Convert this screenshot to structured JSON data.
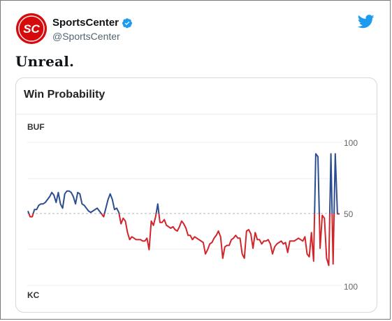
{
  "account": {
    "name": "SportsCenter",
    "handle": "@SportsCenter",
    "verified": true,
    "avatar_text": "SC"
  },
  "tweet": {
    "text": "Unreal."
  },
  "icons": {
    "brand": "twitter-bird-icon",
    "verified": "verified-badge-icon"
  },
  "card": {
    "title": "Win Probability"
  },
  "colors": {
    "buf": "#2c4d8f",
    "kc": "#d0262b",
    "twitter_blue": "#1d9bf0",
    "avatar": "#d50a0a"
  },
  "chart_data": {
    "type": "line",
    "title": "Win Probability",
    "top_label": "BUF",
    "bottom_label": "KC",
    "ylim": [
      0,
      100
    ],
    "y_ticks": [
      "100",
      "50",
      "100"
    ],
    "baseline": 50,
    "grid": true,
    "series": [
      {
        "values": [
          52,
          48,
          48,
          53,
          53,
          56,
          57,
          57,
          58,
          60,
          62,
          65,
          63,
          58,
          65,
          57,
          54,
          64,
          66,
          66,
          65,
          62,
          57,
          65,
          64,
          57,
          56,
          54,
          52,
          51,
          52,
          53,
          54,
          52,
          50,
          48,
          54,
          60,
          64,
          60,
          53,
          54,
          51,
          43,
          47,
          45,
          37,
          32,
          34,
          33,
          32,
          32,
          32,
          31,
          31,
          33,
          25,
          45,
          42,
          48,
          57,
          44,
          44,
          46,
          42,
          41,
          40,
          41,
          39,
          38,
          41,
          45,
          43,
          40,
          35,
          35,
          32,
          34,
          33,
          32,
          31,
          30,
          22,
          25,
          29,
          30,
          33,
          35,
          38,
          34,
          19,
          27,
          28,
          28,
          32,
          33,
          35,
          33,
          33,
          22,
          19,
          38,
          39,
          36,
          26,
          37,
          32,
          32,
          29,
          31,
          31,
          32,
          29,
          22,
          27,
          29,
          30,
          31,
          29,
          30,
          23,
          31,
          31,
          31,
          32,
          33,
          32,
          31,
          34,
          22,
          20,
          37,
          17,
          92,
          90,
          26,
          49,
          47,
          19,
          14,
          92,
          15,
          92,
          50,
          50
        ]
      }
    ]
  }
}
